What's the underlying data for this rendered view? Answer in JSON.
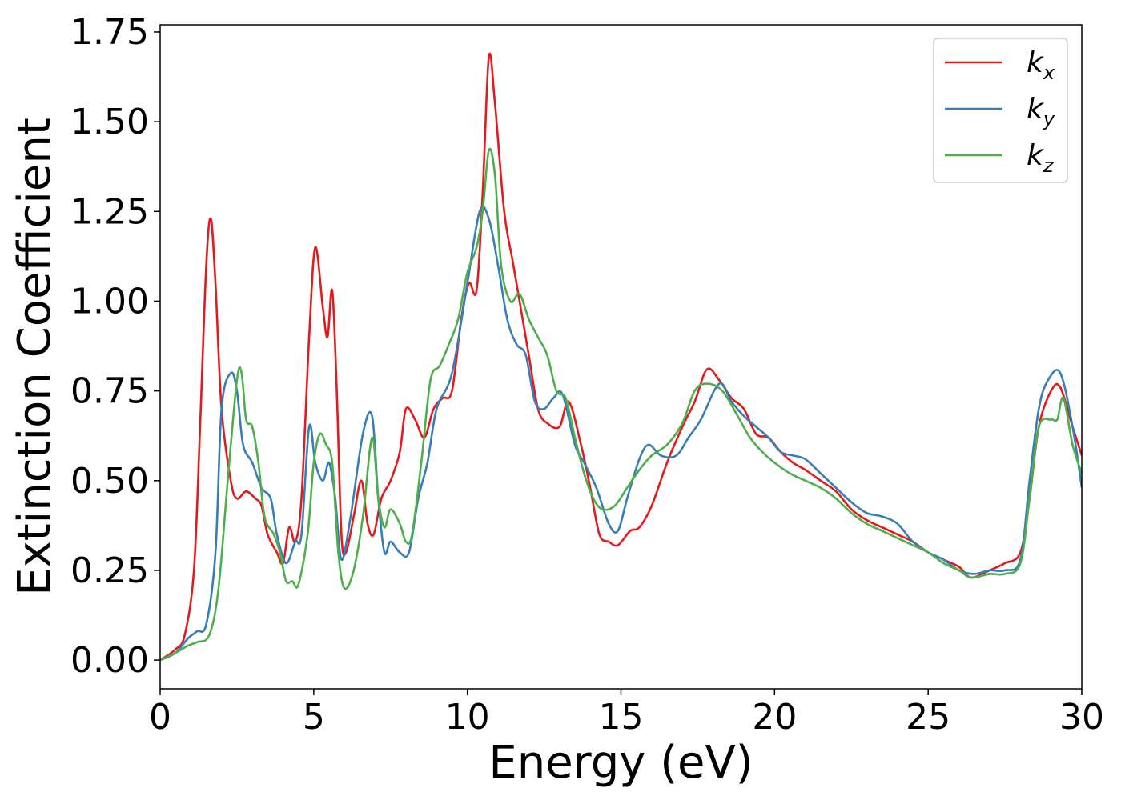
{
  "chart_data": {
    "type": "line",
    "xlabel": "Energy (eV)",
    "ylabel": "Extinction Coefficient",
    "xlim": [
      0,
      30
    ],
    "ylim": [
      -0.08,
      1.77
    ],
    "xticks": [
      0,
      5,
      10,
      15,
      20,
      25,
      30
    ],
    "xtick_labels": [
      "0",
      "5",
      "10",
      "15",
      "20",
      "25",
      "30"
    ],
    "yticks": [
      0.0,
      0.25,
      0.5,
      0.75,
      1.0,
      1.25,
      1.5,
      1.75
    ],
    "ytick_labels": [
      "0.00",
      "0.25",
      "0.50",
      "0.75",
      "1.00",
      "1.25",
      "1.50",
      "1.75"
    ],
    "grid": false,
    "legend_position": "top-right",
    "series": [
      {
        "name": "kx",
        "label_base": "k",
        "label_sub": "x",
        "color": "#e41a1c",
        "points": [
          [
            0,
            0
          ],
          [
            0.5,
            0.03
          ],
          [
            0.8,
            0.07
          ],
          [
            1.1,
            0.25
          ],
          [
            1.3,
            0.65
          ],
          [
            1.5,
            1.1
          ],
          [
            1.65,
            1.23
          ],
          [
            1.8,
            1.05
          ],
          [
            2.0,
            0.7
          ],
          [
            2.3,
            0.5
          ],
          [
            2.5,
            0.45
          ],
          [
            2.8,
            0.47
          ],
          [
            3.1,
            0.45
          ],
          [
            3.3,
            0.43
          ],
          [
            3.5,
            0.35
          ],
          [
            3.8,
            0.3
          ],
          [
            4.0,
            0.27
          ],
          [
            4.2,
            0.37
          ],
          [
            4.4,
            0.33
          ],
          [
            4.6,
            0.45
          ],
          [
            4.85,
            0.9
          ],
          [
            5.05,
            1.15
          ],
          [
            5.3,
            0.98
          ],
          [
            5.45,
            0.9
          ],
          [
            5.6,
            1.03
          ],
          [
            5.75,
            0.75
          ],
          [
            5.9,
            0.35
          ],
          [
            6.05,
            0.3
          ],
          [
            6.3,
            0.4
          ],
          [
            6.55,
            0.5
          ],
          [
            6.75,
            0.38
          ],
          [
            6.95,
            0.35
          ],
          [
            7.2,
            0.45
          ],
          [
            7.5,
            0.5
          ],
          [
            7.8,
            0.58
          ],
          [
            8.0,
            0.7
          ],
          [
            8.3,
            0.67
          ],
          [
            8.6,
            0.62
          ],
          [
            8.9,
            0.7
          ],
          [
            9.2,
            0.73
          ],
          [
            9.5,
            0.75
          ],
          [
            9.8,
            0.95
          ],
          [
            10.05,
            1.05
          ],
          [
            10.3,
            1.03
          ],
          [
            10.5,
            1.3
          ],
          [
            10.7,
            1.68
          ],
          [
            10.9,
            1.55
          ],
          [
            11.2,
            1.25
          ],
          [
            11.5,
            1.1
          ],
          [
            12.0,
            0.85
          ],
          [
            12.3,
            0.7
          ],
          [
            12.6,
            0.66
          ],
          [
            13.0,
            0.65
          ],
          [
            13.3,
            0.72
          ],
          [
            13.7,
            0.6
          ],
          [
            14.0,
            0.48
          ],
          [
            14.3,
            0.35
          ],
          [
            14.6,
            0.33
          ],
          [
            14.9,
            0.32
          ],
          [
            15.3,
            0.36
          ],
          [
            15.6,
            0.37
          ],
          [
            16.0,
            0.43
          ],
          [
            16.5,
            0.55
          ],
          [
            17.0,
            0.65
          ],
          [
            17.4,
            0.72
          ],
          [
            17.8,
            0.81
          ],
          [
            18.2,
            0.78
          ],
          [
            18.6,
            0.73
          ],
          [
            19.0,
            0.7
          ],
          [
            19.4,
            0.63
          ],
          [
            19.8,
            0.62
          ],
          [
            20.2,
            0.58
          ],
          [
            20.6,
            0.55
          ],
          [
            21.0,
            0.53
          ],
          [
            21.5,
            0.5
          ],
          [
            22.0,
            0.47
          ],
          [
            22.5,
            0.42
          ],
          [
            23.0,
            0.39
          ],
          [
            23.5,
            0.37
          ],
          [
            24.0,
            0.35
          ],
          [
            24.5,
            0.33
          ],
          [
            25.0,
            0.3
          ],
          [
            25.5,
            0.28
          ],
          [
            26.0,
            0.26
          ],
          [
            26.4,
            0.23
          ],
          [
            27.0,
            0.25
          ],
          [
            27.5,
            0.27
          ],
          [
            28.0,
            0.3
          ],
          [
            28.3,
            0.45
          ],
          [
            28.6,
            0.65
          ],
          [
            29.0,
            0.75
          ],
          [
            29.3,
            0.76
          ],
          [
            29.7,
            0.65
          ],
          [
            30.0,
            0.57
          ]
        ]
      },
      {
        "name": "ky",
        "label_base": "k",
        "label_sub": "y",
        "color": "#377eb8",
        "points": [
          [
            0,
            0
          ],
          [
            0.5,
            0.02
          ],
          [
            0.9,
            0.06
          ],
          [
            1.2,
            0.08
          ],
          [
            1.5,
            0.1
          ],
          [
            1.8,
            0.3
          ],
          [
            2.0,
            0.7
          ],
          [
            2.3,
            0.8
          ],
          [
            2.5,
            0.75
          ],
          [
            2.7,
            0.6
          ],
          [
            3.0,
            0.55
          ],
          [
            3.3,
            0.48
          ],
          [
            3.6,
            0.45
          ],
          [
            3.8,
            0.35
          ],
          [
            4.1,
            0.27
          ],
          [
            4.4,
            0.33
          ],
          [
            4.6,
            0.35
          ],
          [
            4.85,
            0.65
          ],
          [
            5.05,
            0.55
          ],
          [
            5.3,
            0.5
          ],
          [
            5.5,
            0.55
          ],
          [
            5.7,
            0.45
          ],
          [
            5.9,
            0.28
          ],
          [
            6.2,
            0.4
          ],
          [
            6.6,
            0.63
          ],
          [
            6.9,
            0.68
          ],
          [
            7.1,
            0.45
          ],
          [
            7.3,
            0.3
          ],
          [
            7.5,
            0.33
          ],
          [
            7.8,
            0.3
          ],
          [
            8.1,
            0.3
          ],
          [
            8.4,
            0.45
          ],
          [
            8.7,
            0.55
          ],
          [
            9.0,
            0.7
          ],
          [
            9.5,
            0.8
          ],
          [
            10.0,
            1.05
          ],
          [
            10.4,
            1.25
          ],
          [
            10.7,
            1.23
          ],
          [
            11.0,
            1.1
          ],
          [
            11.3,
            0.95
          ],
          [
            11.6,
            0.88
          ],
          [
            11.9,
            0.85
          ],
          [
            12.2,
            0.72
          ],
          [
            12.5,
            0.7
          ],
          [
            12.8,
            0.73
          ],
          [
            13.1,
            0.74
          ],
          [
            13.5,
            0.6
          ],
          [
            13.8,
            0.55
          ],
          [
            14.2,
            0.48
          ],
          [
            14.6,
            0.38
          ],
          [
            14.9,
            0.36
          ],
          [
            15.2,
            0.45
          ],
          [
            15.6,
            0.56
          ],
          [
            15.9,
            0.6
          ],
          [
            16.3,
            0.57
          ],
          [
            16.8,
            0.57
          ],
          [
            17.2,
            0.62
          ],
          [
            17.6,
            0.67
          ],
          [
            18.2,
            0.77
          ],
          [
            18.6,
            0.72
          ],
          [
            19.0,
            0.68
          ],
          [
            19.4,
            0.65
          ],
          [
            19.8,
            0.62
          ],
          [
            20.2,
            0.58
          ],
          [
            20.6,
            0.57
          ],
          [
            21.0,
            0.56
          ],
          [
            21.5,
            0.52
          ],
          [
            22.0,
            0.48
          ],
          [
            22.5,
            0.44
          ],
          [
            23.0,
            0.41
          ],
          [
            23.5,
            0.4
          ],
          [
            24.0,
            0.38
          ],
          [
            24.5,
            0.33
          ],
          [
            25.0,
            0.3
          ],
          [
            25.5,
            0.28
          ],
          [
            26.0,
            0.25
          ],
          [
            26.5,
            0.24
          ],
          [
            27.0,
            0.25
          ],
          [
            27.5,
            0.25
          ],
          [
            28.0,
            0.28
          ],
          [
            28.3,
            0.5
          ],
          [
            28.6,
            0.7
          ],
          [
            28.9,
            0.78
          ],
          [
            29.3,
            0.8
          ],
          [
            29.7,
            0.65
          ],
          [
            30.0,
            0.48
          ]
        ]
      },
      {
        "name": "kz",
        "label_base": "k",
        "label_sub": "z",
        "color": "#4daf4a",
        "points": [
          [
            0,
            0
          ],
          [
            0.5,
            0.02
          ],
          [
            0.9,
            0.04
          ],
          [
            1.2,
            0.05
          ],
          [
            1.6,
            0.07
          ],
          [
            1.9,
            0.2
          ],
          [
            2.2,
            0.5
          ],
          [
            2.5,
            0.78
          ],
          [
            2.65,
            0.8
          ],
          [
            2.8,
            0.67
          ],
          [
            3.0,
            0.65
          ],
          [
            3.2,
            0.55
          ],
          [
            3.4,
            0.4
          ],
          [
            3.7,
            0.35
          ],
          [
            3.9,
            0.3
          ],
          [
            4.1,
            0.22
          ],
          [
            4.3,
            0.22
          ],
          [
            4.5,
            0.21
          ],
          [
            4.8,
            0.35
          ],
          [
            5.0,
            0.55
          ],
          [
            5.2,
            0.63
          ],
          [
            5.4,
            0.6
          ],
          [
            5.6,
            0.55
          ],
          [
            5.8,
            0.3
          ],
          [
            6.0,
            0.2
          ],
          [
            6.3,
            0.25
          ],
          [
            6.6,
            0.4
          ],
          [
            6.9,
            0.62
          ],
          [
            7.1,
            0.45
          ],
          [
            7.3,
            0.37
          ],
          [
            7.5,
            0.42
          ],
          [
            7.8,
            0.38
          ],
          [
            8.0,
            0.33
          ],
          [
            8.2,
            0.35
          ],
          [
            8.5,
            0.55
          ],
          [
            8.8,
            0.78
          ],
          [
            9.1,
            0.82
          ],
          [
            9.4,
            0.88
          ],
          [
            9.7,
            0.95
          ],
          [
            10.0,
            1.08
          ],
          [
            10.3,
            1.15
          ],
          [
            10.5,
            1.25
          ],
          [
            10.7,
            1.42
          ],
          [
            10.9,
            1.35
          ],
          [
            11.1,
            1.1
          ],
          [
            11.4,
            1.0
          ],
          [
            11.7,
            1.02
          ],
          [
            12.0,
            0.95
          ],
          [
            12.3,
            0.9
          ],
          [
            12.6,
            0.85
          ],
          [
            12.9,
            0.75
          ],
          [
            13.2,
            0.73
          ],
          [
            13.5,
            0.62
          ],
          [
            13.8,
            0.52
          ],
          [
            14.1,
            0.45
          ],
          [
            14.4,
            0.42
          ],
          [
            14.8,
            0.43
          ],
          [
            15.2,
            0.48
          ],
          [
            15.6,
            0.53
          ],
          [
            16.0,
            0.57
          ],
          [
            16.5,
            0.6
          ],
          [
            17.0,
            0.66
          ],
          [
            17.4,
            0.75
          ],
          [
            17.8,
            0.77
          ],
          [
            18.3,
            0.75
          ],
          [
            18.8,
            0.68
          ],
          [
            19.2,
            0.62
          ],
          [
            19.6,
            0.58
          ],
          [
            20.0,
            0.55
          ],
          [
            20.5,
            0.52
          ],
          [
            21.0,
            0.5
          ],
          [
            21.5,
            0.48
          ],
          [
            22.0,
            0.45
          ],
          [
            22.5,
            0.41
          ],
          [
            23.0,
            0.38
          ],
          [
            23.5,
            0.36
          ],
          [
            24.0,
            0.34
          ],
          [
            24.5,
            0.32
          ],
          [
            25.0,
            0.3
          ],
          [
            25.5,
            0.27
          ],
          [
            26.0,
            0.25
          ],
          [
            26.4,
            0.23
          ],
          [
            27.0,
            0.24
          ],
          [
            27.5,
            0.24
          ],
          [
            28.0,
            0.27
          ],
          [
            28.3,
            0.45
          ],
          [
            28.6,
            0.65
          ],
          [
            29.0,
            0.67
          ],
          [
            29.2,
            0.67
          ],
          [
            29.4,
            0.73
          ],
          [
            29.7,
            0.6
          ],
          [
            30.0,
            0.52
          ]
        ]
      }
    ]
  }
}
